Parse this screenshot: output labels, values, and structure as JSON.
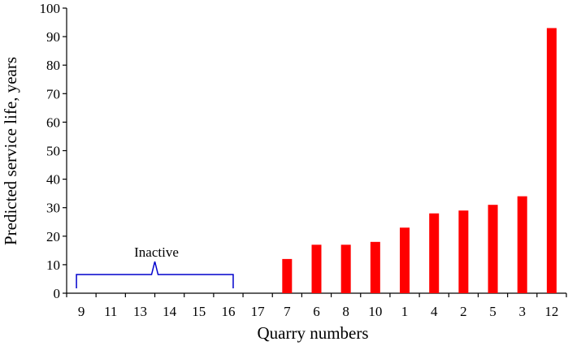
{
  "chart_data": {
    "type": "bar",
    "title": "",
    "xlabel": "Quarry numbers",
    "ylabel": "Predicted service life, years",
    "categories": [
      "9",
      "11",
      "13",
      "14",
      "15",
      "16",
      "17",
      "7",
      "6",
      "8",
      "10",
      "1",
      "4",
      "2",
      "5",
      "3",
      "12"
    ],
    "values": [
      0,
      0,
      0,
      0,
      0,
      0,
      0,
      12,
      17,
      17,
      18,
      23,
      28,
      29,
      31,
      34,
      93
    ],
    "ylim": [
      0,
      100
    ],
    "yticks": [
      0,
      10,
      20,
      30,
      40,
      50,
      60,
      70,
      80,
      90,
      100
    ],
    "grid": false,
    "bar_color": "#ff0000",
    "annotation": {
      "text": "Inactive",
      "range_start": "9",
      "range_end": "16",
      "color": "#0000cc"
    }
  }
}
